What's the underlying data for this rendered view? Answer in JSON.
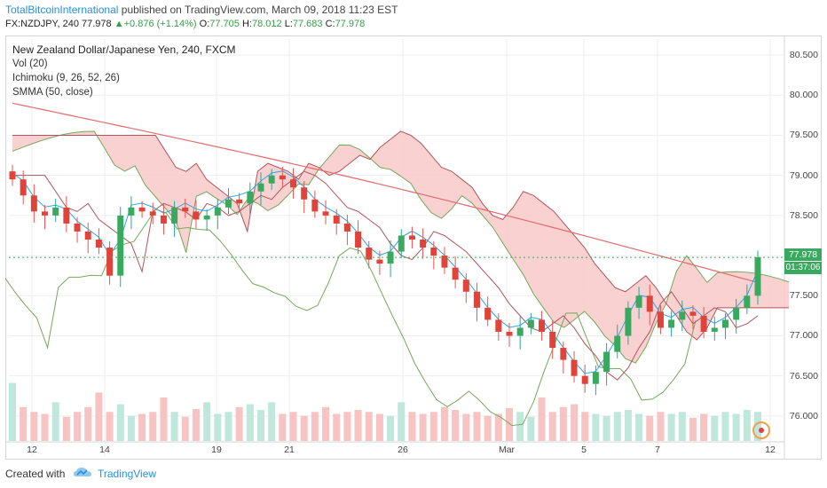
{
  "header": {
    "publisher": "TotalBitcoinInternational",
    "published_text": "published on TradingView.com, March 09, 2018 11:23 EST",
    "symbol": "FX:NZDJPY, 240",
    "last": "77.978",
    "change_arrow": "▲",
    "change": "+0.876 (+1.14%)",
    "ohlc": {
      "O": "77.705",
      "H": "78.012",
      "L": "77.683",
      "C": "77.978"
    }
  },
  "legend": {
    "title": "New Zealand Dollar/Japanese Yen, 240, FXCM",
    "vol": "Vol (20)",
    "ichimoku": "Ichimoku (9, 26, 52, 26)",
    "smma": "SMMA (50, close)"
  },
  "price_tag": "77.978",
  "time_tag": "01:37:06",
  "footer": {
    "created_with": "Created with",
    "brand": "TradingView",
    "logo_icon": "tradingview-cloud-icon"
  },
  "colors": {
    "up": "#26a69a",
    "down": "#ef5350",
    "cloud_red": "#f8c9c9",
    "cloud_green": "#c9ecd3",
    "smma": "#e26b6b",
    "tenkan": "#2aa7e8",
    "kijun": "#b0555a",
    "chikou": "#74a85b",
    "accent_blue": "#2a8fdc"
  },
  "chart_data": {
    "type": "candlestick",
    "y_ticks": [
      "80.500",
      "80.000",
      "79.500",
      "79.000",
      "78.500",
      "78.000",
      "77.500",
      "77.000",
      "76.500",
      "76.000"
    ],
    "ylim": [
      75.7,
      80.7
    ],
    "x_ticks": [
      "12",
      "14",
      "19",
      "21",
      "26",
      "Mar",
      "5",
      "7",
      "12"
    ],
    "close_series": [
      78.95,
      78.75,
      78.55,
      78.5,
      78.6,
      78.4,
      78.3,
      78.2,
      78.1,
      77.75,
      78.5,
      78.6,
      78.55,
      78.5,
      78.4,
      78.6,
      78.55,
      78.45,
      78.5,
      78.6,
      78.7,
      78.65,
      78.8,
      78.9,
      79.0,
      78.95,
      78.85,
      78.7,
      78.55,
      78.5,
      78.4,
      78.3,
      78.1,
      77.95,
      77.9,
      78.05,
      78.25,
      78.2,
      78.1,
      78.0,
      77.85,
      77.7,
      77.55,
      77.35,
      77.2,
      77.05,
      77.0,
      77.1,
      77.2,
      77.05,
      76.85,
      76.7,
      76.5,
      76.4,
      76.55,
      76.8,
      77.0,
      77.35,
      77.5,
      77.3,
      77.1,
      77.2,
      77.3,
      77.25,
      77.05,
      77.1,
      77.2,
      77.35,
      77.5,
      77.98
    ],
    "smma_start": 79.9,
    "smma_end": 77.65,
    "volume": [
      60,
      35,
      30,
      28,
      40,
      25,
      30,
      35,
      50,
      30,
      38,
      26,
      28,
      30,
      45,
      30,
      25,
      33,
      40,
      28,
      30,
      35,
      38,
      32,
      40,
      28,
      30,
      26,
      30,
      35,
      28,
      30,
      32,
      30,
      28,
      26,
      40,
      30,
      28,
      30,
      35,
      32,
      28,
      30,
      26,
      28,
      34,
      30,
      25,
      45,
      30,
      35,
      38,
      30,
      28,
      26,
      30,
      32,
      28,
      26,
      30,
      28,
      30,
      24,
      28,
      26,
      30,
      28,
      32,
      30
    ]
  }
}
